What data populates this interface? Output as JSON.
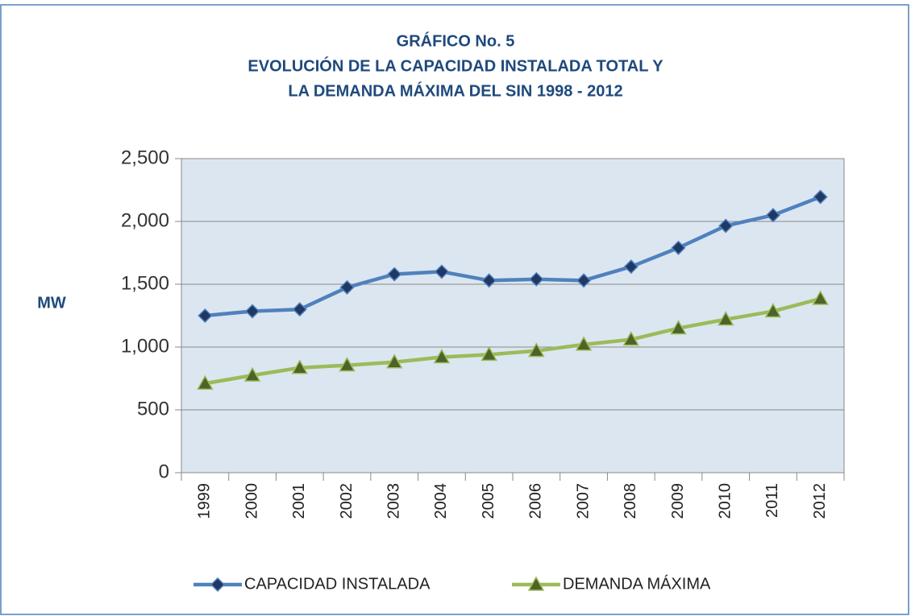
{
  "chart_data": {
    "type": "line",
    "title": [
      "GRÁFICO  No. 5",
      "EVOLUCIÓN DE LA CAPACIDAD  INSTALADA TOTAL  Y",
      "LA DEMANDA MÁXIMA  DEL  SIN   1998 - 2012"
    ],
    "y_label": "MW",
    "categories": [
      "1999",
      "2000",
      "2001",
      "2002",
      "2003",
      "2004",
      "2005",
      "2006",
      "2007",
      "2008",
      "2009",
      "2010",
      "2011",
      "2012"
    ],
    "series": [
      {
        "name": "CAPACIDAD INSTALADA",
        "color": "#4f81bd",
        "marker": "diamond",
        "marker_color": "#1f3864",
        "values": [
          1250,
          1285,
          1300,
          1475,
          1580,
          1600,
          1530,
          1540,
          1530,
          1640,
          1790,
          1965,
          2050,
          2195
        ]
      },
      {
        "name": "DEMANDA MÁXIMA",
        "color": "#9bbb59",
        "marker": "triangle",
        "marker_color": "#4f6228",
        "values": [
          710,
          775,
          835,
          855,
          880,
          920,
          940,
          970,
          1020,
          1060,
          1150,
          1220,
          1285,
          1385
        ]
      }
    ],
    "ylim": [
      0,
      2500
    ],
    "yticks": [
      0,
      500,
      {
        "value": 1000,
        "label": "1,000"
      },
      {
        "value": 1500,
        "label": "1,500"
      },
      {
        "value": 2000,
        "label": "2,000"
      },
      {
        "value": 2500,
        "label": "2,500"
      }
    ],
    "grid": true,
    "legend": "bottom"
  }
}
